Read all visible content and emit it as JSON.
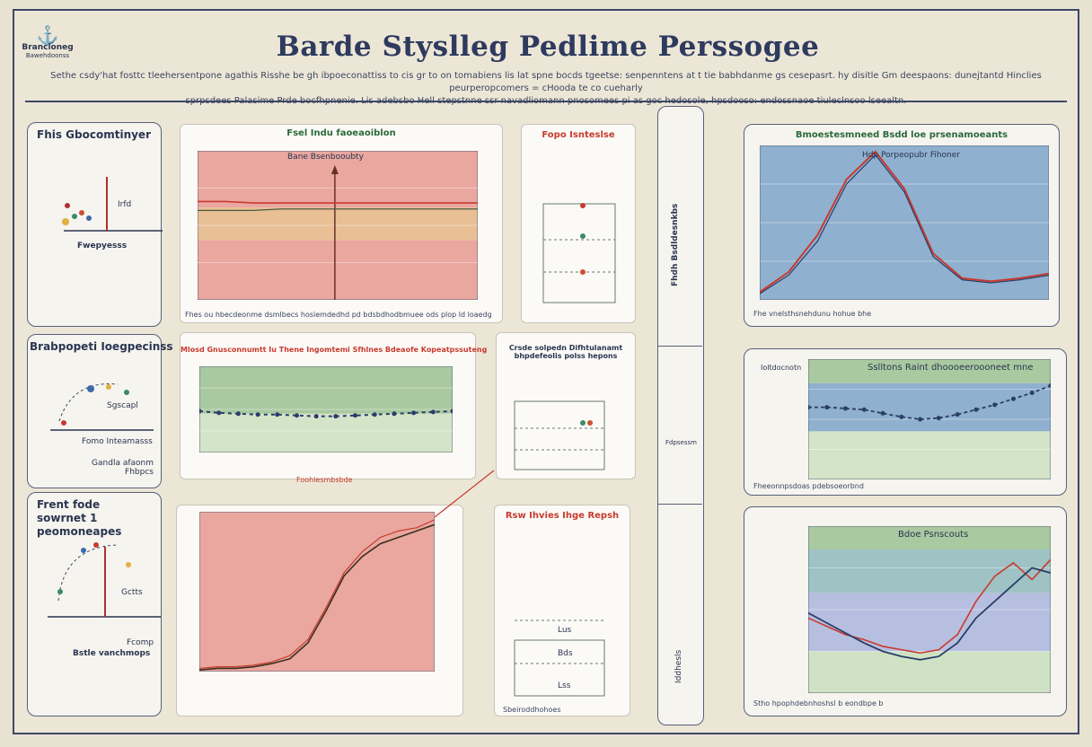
{
  "logo": {
    "text": "Brancioneg",
    "sub": "Bawehdoonss"
  },
  "title": "Barde Styslleg Pedlime Perssogee",
  "intro": [
    "Sethe csdy'hat fosttc tleehersentpone agathis Risshe be gh ibpoeconattiss to cis gr to on tomabiens lis lat spne bocds tgeetse: senpenntens at t tie babhdanme gs cesepasrt. hy disitle Gm deespaons: dunejtantd Hinclies peurperopcomers = cHooda te co cueharly",
    "sprpsdees Palasime   Prde bocfhpnenie. Lis adebsbo Hell stepstnne ssr navadliomann pnosomees pi as goc hedosole, hpsdooso: endossnaoe tiuleclnsoo lseealtn."
  ],
  "icons": {
    "arrow_up": "arrow-up-icon",
    "marker": "dot-marker-icon"
  },
  "colors": {
    "salmon": "#e9a79f",
    "green": "#a9c9a0",
    "blue": "#8fb0cf",
    "red_line": "#c83a2e",
    "navy": "#2a3e6a"
  },
  "left_panels": [
    {
      "title": "Fhis Gbocomtinyer",
      "sub": "Fwepyesss",
      "marker": "Irfd"
    },
    {
      "title": "Brabpopeti Ioegpecinss",
      "sub": "Fomo Inteamasss",
      "marker": "Sgscapl",
      "foot": "Gandla afaonm Fhbpcs"
    },
    {
      "title": "Frent fode sowrnet 1 peomoneapes",
      "sub": "Bstle vanchmops",
      "marker": "Gctts",
      "foot": "Fcomp"
    }
  ],
  "top_row": {
    "main_chart_title": "Fsel Indu faoeaoiblon",
    "inner_title": "Bane Bsenbooubty",
    "side_label": "Fopo Isnteslse",
    "footnote": "Fhes ou hbecdeonme dsmlbecs hosiemdedhd pd bdsbdhodbmuee ods plop ld loaedg"
  },
  "mid_row": {
    "main_chart_title": "Mlosd Gnusconnumtt Iu Thene Ingomtemi Sfhlnes Bdeaofe Kopeatpssuteng",
    "footnote": "Foohlesmbsbde",
    "side_title": "Crsde solpedn Difhtulanamt bhpdefeolis polss hepons"
  },
  "bot_row": {
    "side_title": "Rsw Ihvies Ihge Repsh",
    "side_values": [
      "Lus",
      "Bds",
      "Lss"
    ],
    "footnote": "Sbeiroddhohoes"
  },
  "sidebar": {
    "labels": [
      "Fhdh Bsdldesnkbs",
      "Fdpsessm",
      "Iddhesls"
    ]
  },
  "right_panels": [
    {
      "title": "Bmoestesmneed Bsdd loe prsenamoeants",
      "inner_title": "Hdp Porpeopubr Fihoner",
      "footnote": "Fhe vnelsthsnehdunu hohue bhe"
    },
    {
      "title": "Sslltons Raint dhoooeeroooneet mne",
      "side_label": "Ioltdocnotn",
      "footnote": "Fheeonnpsdoas pdebsoeorbnd"
    },
    {
      "title": "Bdoe Psnscouts",
      "footnote": "Stho hpophdebnhoshsl b eondbpe b"
    }
  ],
  "chart_data": [
    {
      "type": "line",
      "title": "Fsel Indu faoeaoiblon",
      "x": [
        0,
        1,
        2,
        3,
        4,
        5,
        6,
        7,
        8,
        9,
        10
      ],
      "series": [
        {
          "values": [
            66,
            66,
            65,
            65,
            65,
            65,
            65,
            65,
            65,
            65,
            65
          ]
        },
        {
          "values": [
            60,
            60,
            60,
            61,
            61,
            61,
            61,
            61,
            61,
            61,
            61
          ]
        }
      ],
      "bands": [
        "#e9a79f",
        "#e9bf96",
        "#e9a79f"
      ],
      "ylim": [
        0,
        100
      ],
      "grid": true
    },
    {
      "type": "line",
      "title": "Bmoestesmneed Bsdd loe prsenamoeants",
      "x": [
        0,
        1,
        2,
        3,
        4,
        5,
        6,
        7,
        8,
        9,
        10
      ],
      "series": [
        {
          "values": [
            5,
            18,
            42,
            78,
            96,
            72,
            30,
            14,
            12,
            14,
            17
          ]
        },
        {
          "values": [
            4,
            16,
            38,
            75,
            94,
            70,
            28,
            13,
            11,
            13,
            16
          ]
        }
      ],
      "ylim": [
        0,
        100
      ],
      "grid": true
    },
    {
      "type": "line",
      "title": "Mlosd Gnusconnumtt Iu Thene Ingomtemi Sfhlnes Bdeaofe Kopeatpssuteng",
      "x": [
        0,
        1,
        2,
        3,
        4,
        5,
        6,
        7,
        8,
        9,
        10,
        11,
        12,
        13
      ],
      "series": [
        {
          "values": [
            48,
            46,
            45,
            44,
            44,
            43,
            42,
            42,
            43,
            44,
            45,
            46,
            47,
            48
          ]
        }
      ],
      "ylim": [
        0,
        100
      ],
      "grid": true
    },
    {
      "type": "line",
      "title": "Sslltons Raint dhoooeeroooneet mne",
      "x": [
        0,
        1,
        2,
        3,
        4,
        5,
        6,
        7,
        8,
        9,
        10,
        11,
        12,
        13
      ],
      "series": [
        {
          "values": [
            60,
            60,
            59,
            58,
            55,
            52,
            50,
            51,
            54,
            58,
            62,
            67,
            72,
            78
          ]
        }
      ],
      "ylim": [
        0,
        100
      ],
      "grid": true
    },
    {
      "type": "line",
      "title": "",
      "x": [
        0,
        1,
        2,
        3,
        4,
        5,
        6,
        7,
        8,
        9,
        10,
        11,
        12,
        13
      ],
      "series": [
        {
          "values": [
            1,
            2,
            2,
            3,
            5,
            8,
            18,
            38,
            60,
            72,
            80,
            84,
            88,
            92
          ]
        },
        {
          "values": [
            2,
            3,
            3,
            4,
            6,
            10,
            20,
            40,
            62,
            75,
            84,
            88,
            90,
            95
          ]
        }
      ],
      "ylim": [
        0,
        100
      ],
      "grid": false
    },
    {
      "type": "line",
      "title": "Bdoe Psnscouts",
      "x": [
        0,
        1,
        2,
        3,
        4,
        5,
        6,
        7,
        8,
        9,
        10,
        11,
        12,
        13
      ],
      "series": [
        {
          "values": [
            45,
            40,
            35,
            32,
            28,
            26,
            24,
            26,
            35,
            55,
            70,
            78,
            68,
            80
          ]
        },
        {
          "values": [
            48,
            42,
            36,
            30,
            25,
            22,
            20,
            22,
            30,
            45,
            55,
            65,
            75,
            72
          ]
        }
      ],
      "ylim": [
        0,
        100
      ],
      "grid": true
    }
  ]
}
